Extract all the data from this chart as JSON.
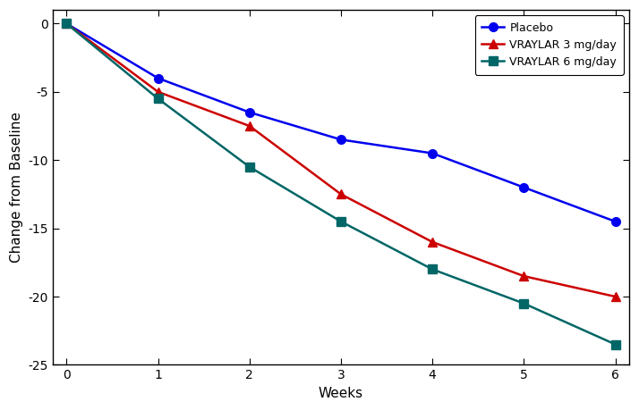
{
  "weeks": [
    0,
    1,
    2,
    3,
    4,
    5,
    6
  ],
  "placebo": [
    0,
    -4.0,
    -6.5,
    -8.5,
    -9.5,
    -12.0,
    -14.5
  ],
  "vraylar3": [
    0,
    -5.0,
    -7.5,
    -12.5,
    -16.0,
    -18.5,
    -20.0
  ],
  "vraylar6": [
    0,
    -5.5,
    -10.5,
    -14.5,
    -18.0,
    -20.5,
    -23.5
  ],
  "placebo_color": "#0000EE",
  "vraylar3_color": "#CC0000",
  "vraylar6_color": "#006666",
  "placebo_label": "Placebo",
  "vraylar3_label": "VRAYLAR 3 mg/day",
  "vraylar6_label": "VRAYLAR 6 mg/day",
  "xlabel": "Weeks",
  "ylabel": "Change from Baseline",
  "ylim": [
    -25,
    1
  ],
  "xlim": [
    -0.15,
    6.15
  ],
  "yticks": [
    0,
    -5,
    -10,
    -15,
    -20,
    -25
  ],
  "xticks": [
    0,
    1,
    2,
    3,
    4,
    5,
    6
  ],
  "background_color": "#ffffff",
  "plot_bg_color": "#ffffff",
  "linewidth": 1.8,
  "markersize": 7,
  "legend_fontsize": 9,
  "axis_fontsize": 11,
  "tick_fontsize": 10
}
